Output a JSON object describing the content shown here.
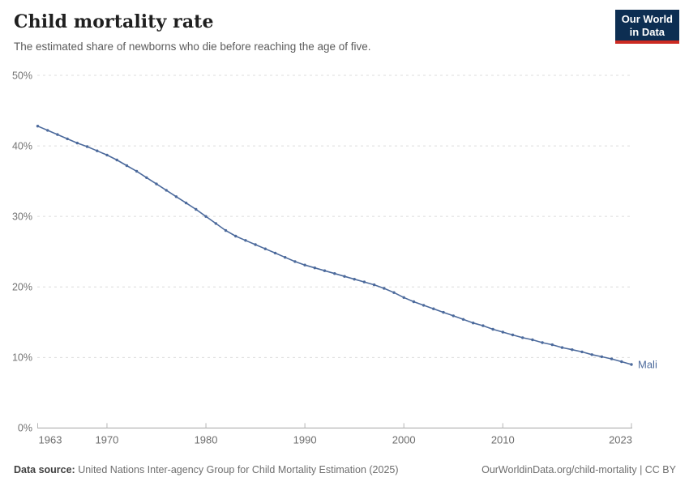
{
  "header": {
    "title": "Child mortality rate",
    "subtitle": "The estimated share of newborns who die before reaching the age of five.",
    "logo": {
      "line1": "Our World",
      "line2": "in Data",
      "bg_color": "#0d2e52",
      "accent_color": "#cc2a22"
    }
  },
  "chart_data": {
    "type": "line",
    "title": "Child mortality rate",
    "xlabel": "",
    "ylabel": "",
    "xlim": [
      1963,
      2023
    ],
    "ylim": [
      0,
      50
    ],
    "x_ticks": [
      1963,
      1970,
      1980,
      1990,
      2000,
      2010,
      2023
    ],
    "y_ticks": [
      0,
      10,
      20,
      30,
      40,
      50
    ],
    "y_tick_suffix": "%",
    "grid": "horizontal-dashed",
    "legend_position": "end-of-line-label",
    "series": [
      {
        "name": "Mali",
        "color": "#4C6A9C",
        "x": [
          1963,
          1964,
          1965,
          1966,
          1967,
          1968,
          1969,
          1970,
          1971,
          1972,
          1973,
          1974,
          1975,
          1976,
          1977,
          1978,
          1979,
          1980,
          1981,
          1982,
          1983,
          1984,
          1985,
          1986,
          1987,
          1988,
          1989,
          1990,
          1991,
          1992,
          1993,
          1994,
          1995,
          1996,
          1997,
          1998,
          1999,
          2000,
          2001,
          2002,
          2003,
          2004,
          2005,
          2006,
          2007,
          2008,
          2009,
          2010,
          2011,
          2012,
          2013,
          2014,
          2015,
          2016,
          2017,
          2018,
          2019,
          2020,
          2021,
          2022,
          2023
        ],
        "values": [
          42.8,
          42.2,
          41.6,
          41.0,
          40.4,
          39.9,
          39.3,
          38.7,
          38.0,
          37.2,
          36.4,
          35.5,
          34.6,
          33.7,
          32.8,
          31.9,
          31.0,
          30.0,
          29.0,
          28.0,
          27.2,
          26.6,
          26.0,
          25.4,
          24.8,
          24.2,
          23.6,
          23.1,
          22.7,
          22.3,
          21.9,
          21.5,
          21.1,
          20.7,
          20.3,
          19.8,
          19.2,
          18.5,
          17.9,
          17.4,
          16.9,
          16.4,
          15.9,
          15.4,
          14.9,
          14.5,
          14.0,
          13.6,
          13.2,
          12.8,
          12.5,
          12.1,
          11.8,
          11.4,
          11.1,
          10.8,
          10.4,
          10.1,
          9.8,
          9.4,
          9.0
        ]
      }
    ],
    "axis_color": "#a5a5a5",
    "grid_color": "#dcdcdc",
    "tick_label_color": "#6e6e6e"
  },
  "footer": {
    "source_label": "Data source:",
    "source_text": "United Nations Inter-agency Group for Child Mortality Estimation (2025)",
    "right_text": "OurWorldinData.org/child-mortality | CC BY"
  }
}
